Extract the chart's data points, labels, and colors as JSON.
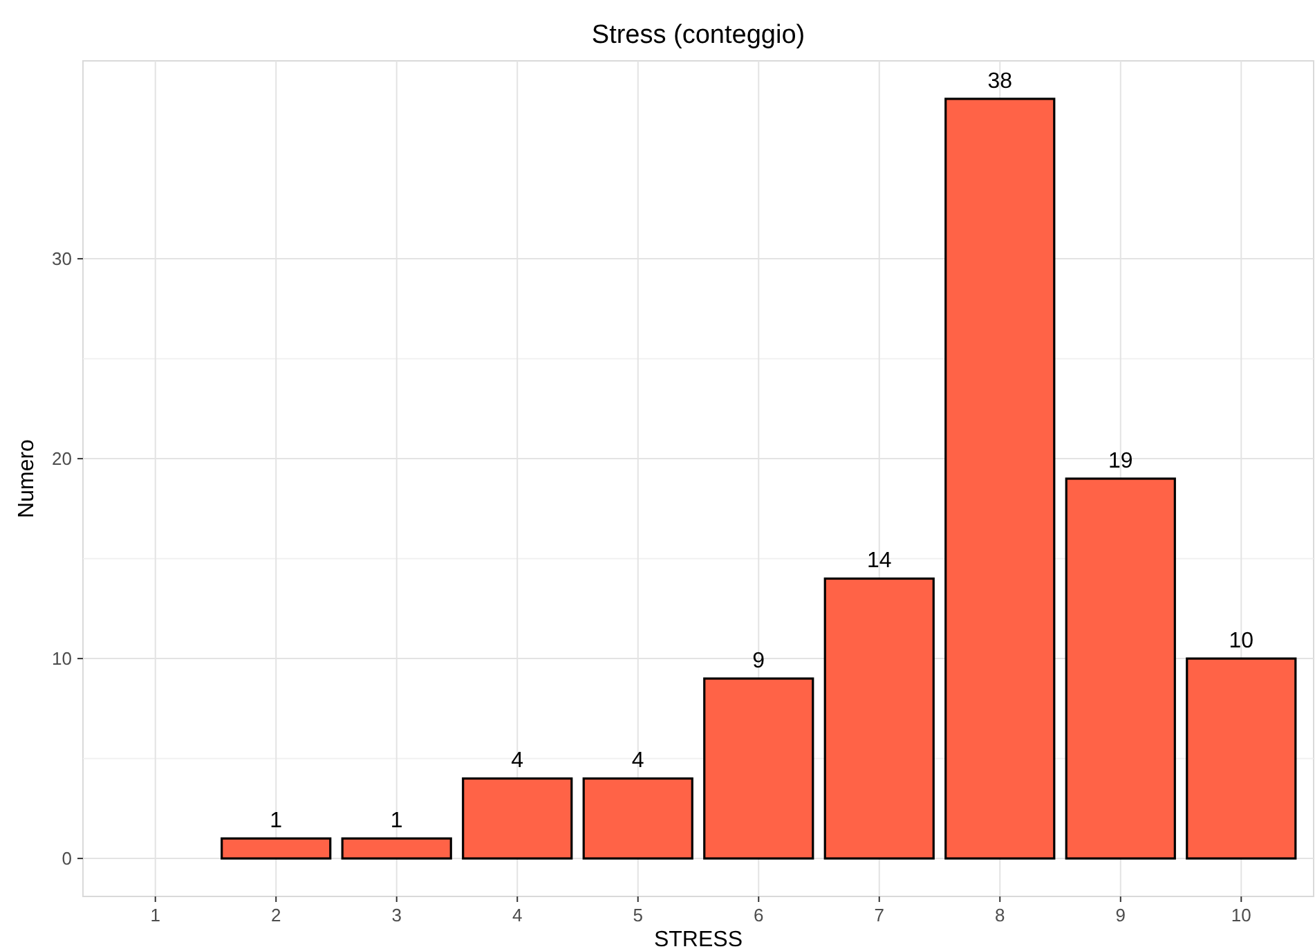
{
  "chart_data": {
    "type": "bar",
    "title": "Stress (conteggio)",
    "xlabel": "STRESS",
    "ylabel": "Numero",
    "categories": [
      "1",
      "2",
      "3",
      "4",
      "5",
      "6",
      "7",
      "8",
      "9",
      "10"
    ],
    "values": [
      null,
      1,
      1,
      4,
      4,
      9,
      14,
      38,
      19,
      10
    ],
    "color": "#ff6347",
    "data_labels": true,
    "ylim": [
      -1.9,
      39.9
    ],
    "yticks": [
      0,
      10,
      20,
      30
    ],
    "grid": true
  }
}
